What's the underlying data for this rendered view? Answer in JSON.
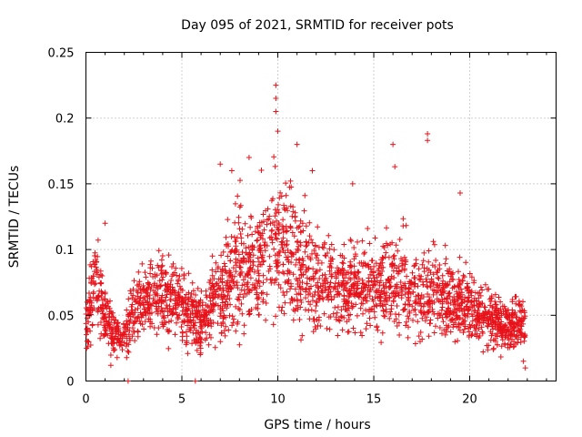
{
  "chart_data": {
    "type": "scatter",
    "title": "Day 095 of 2021, SRMTID for receiver pots",
    "xlabel": "GPS time / hours",
    "ylabel": "SRMTID / TECUs",
    "xlim": [
      0,
      24.5
    ],
    "ylim": [
      0,
      0.25
    ],
    "x_ticks": [
      0,
      5,
      10,
      15,
      20
    ],
    "x_tick_labels": [
      "0",
      "5",
      "10",
      "15",
      "20"
    ],
    "y_ticks": [
      0,
      0.05,
      0.1,
      0.15,
      0.2,
      0.25
    ],
    "y_tick_labels": [
      "0",
      "0.05",
      "0.1",
      "0.15",
      "0.2",
      "0.25"
    ],
    "grid": true,
    "marker": "+",
    "color": "#e8121a",
    "series": [
      {
        "name": "SRMTID",
        "mean_profile": {
          "x": [
            0,
            0.5,
            1,
            1.5,
            2,
            2.5,
            3,
            3.5,
            4,
            4.5,
            5,
            5.5,
            6,
            6.5,
            7,
            7.5,
            8,
            8.5,
            9,
            9.5,
            10,
            10.5,
            11,
            11.5,
            12,
            12.5,
            13,
            13.5,
            14,
            14.5,
            15,
            15.5,
            16,
            16.5,
            17,
            17.5,
            18,
            18.5,
            19,
            19.5,
            20,
            20.5,
            21,
            21.5,
            22,
            22.5,
            23
          ],
          "y": [
            0.045,
            0.075,
            0.05,
            0.035,
            0.032,
            0.055,
            0.06,
            0.062,
            0.063,
            0.06,
            0.058,
            0.05,
            0.045,
            0.055,
            0.065,
            0.08,
            0.09,
            0.085,
            0.095,
            0.1,
            0.105,
            0.095,
            0.085,
            0.08,
            0.075,
            0.075,
            0.072,
            0.07,
            0.075,
            0.072,
            0.07,
            0.07,
            0.072,
            0.075,
            0.068,
            0.065,
            0.07,
            0.065,
            0.062,
            0.06,
            0.058,
            0.052,
            0.05,
            0.045,
            0.042,
            0.042,
            0.045
          ]
        },
        "extreme_points": [
          {
            "x": 9.9,
            "y": 0.225
          },
          {
            "x": 9.9,
            "y": 0.215
          },
          {
            "x": 9.9,
            "y": 0.205
          },
          {
            "x": 16.0,
            "y": 0.18
          },
          {
            "x": 17.8,
            "y": 0.188
          },
          {
            "x": 17.8,
            "y": 0.183
          },
          {
            "x": 10.0,
            "y": 0.19
          },
          {
            "x": 8.5,
            "y": 0.17
          },
          {
            "x": 7.0,
            "y": 0.165
          },
          {
            "x": 7.6,
            "y": 0.16
          },
          {
            "x": 11.0,
            "y": 0.18
          },
          {
            "x": 13.9,
            "y": 0.15
          },
          {
            "x": 16.1,
            "y": 0.163
          },
          {
            "x": 19.5,
            "y": 0.143
          },
          {
            "x": 11.8,
            "y": 0.16
          },
          {
            "x": 1.0,
            "y": 0.12
          },
          {
            "x": 22.9,
            "y": 0.01
          },
          {
            "x": 22.8,
            "y": 0.015
          },
          {
            "x": 1.3,
            "y": 0.012
          },
          {
            "x": 2.2,
            "y": 0.0
          },
          {
            "x": 5.7,
            "y": 0.0
          }
        ]
      }
    ]
  }
}
